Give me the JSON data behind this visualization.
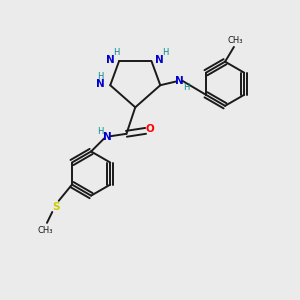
{
  "bg_color": "#ebebeb",
  "bond_color": "#1a1a1a",
  "n_color": "#0000cc",
  "o_color": "#ff0000",
  "s_color": "#cccc00",
  "h_color": "#008888",
  "line_width": 1.4,
  "figsize": [
    3.0,
    3.0
  ],
  "dpi": 100,
  "xlim": [
    0,
    10
  ],
  "ylim": [
    0,
    10
  ]
}
